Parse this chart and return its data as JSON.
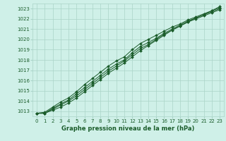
{
  "title": "Graphe pression niveau de la mer (hPa)",
  "bg_color": "#cff0e8",
  "grid_color": "#aad4c8",
  "line_color": "#1a5c2a",
  "tick_color": "#1a5c2a",
  "xlim": [
    -0.5,
    23.5
  ],
  "ylim": [
    1012.5,
    1023.5
  ],
  "yticks": [
    1013,
    1014,
    1015,
    1016,
    1017,
    1018,
    1019,
    1020,
    1021,
    1022,
    1023
  ],
  "xticks": [
    0,
    1,
    2,
    3,
    4,
    5,
    6,
    7,
    8,
    9,
    10,
    11,
    12,
    13,
    14,
    15,
    16,
    17,
    18,
    19,
    20,
    21,
    22,
    23
  ],
  "series": [
    [
      1012.8,
      1012.8,
      1013.1,
      1013.4,
      1013.8,
      1014.3,
      1014.9,
      1015.5,
      1016.1,
      1016.7,
      1017.2,
      1017.7,
      1018.3,
      1018.9,
      1019.4,
      1019.9,
      1020.4,
      1020.9,
      1021.3,
      1021.7,
      1022.1,
      1022.4,
      1022.8,
      1023.2
    ],
    [
      1012.8,
      1012.8,
      1013.2,
      1013.6,
      1014.0,
      1014.5,
      1015.1,
      1015.7,
      1016.3,
      1016.9,
      1017.4,
      1017.9,
      1018.5,
      1019.1,
      1019.5,
      1020.0,
      1020.5,
      1020.9,
      1021.3,
      1021.7,
      1022.0,
      1022.3,
      1022.6,
      1022.9
    ],
    [
      1012.8,
      1012.8,
      1013.3,
      1013.7,
      1014.1,
      1014.7,
      1015.3,
      1015.9,
      1016.5,
      1017.1,
      1017.6,
      1018.0,
      1018.7,
      1019.3,
      1019.7,
      1020.1,
      1020.6,
      1021.0,
      1021.4,
      1021.8,
      1022.1,
      1022.4,
      1022.7,
      1023.0
    ],
    [
      1012.8,
      1012.9,
      1013.4,
      1013.9,
      1014.3,
      1014.9,
      1015.6,
      1016.2,
      1016.8,
      1017.4,
      1017.9,
      1018.3,
      1019.0,
      1019.6,
      1020.0,
      1020.4,
      1020.8,
      1021.2,
      1021.5,
      1021.9,
      1022.2,
      1022.5,
      1022.8,
      1023.1
    ]
  ]
}
